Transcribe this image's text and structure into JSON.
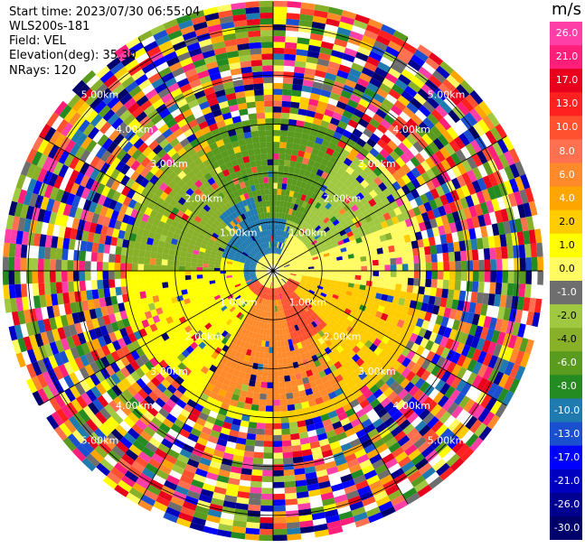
{
  "header": {
    "start_time": "Start time: 2023/07/30 06:55:04",
    "instrument": "WLS200s-181",
    "field": "Field: VEL",
    "elevation": "Elevation(deg): 35.30",
    "nrays": "NRays: 120"
  },
  "colorbar": {
    "unit": "m/s",
    "levels": [
      "26.0",
      "21.0",
      "17.0",
      "13.0",
      "10.0",
      "8.0",
      "6.0",
      "4.0",
      "2.0",
      "1.0",
      "0.0",
      "-1.0",
      "-2.0",
      "-4.0",
      "-6.0",
      "-8.0",
      "-10.0",
      "-13.0",
      "-17.0",
      "-21.0",
      "-26.0",
      "-30.0"
    ],
    "colors": [
      "#ff3fa8",
      "#ff1f7a",
      "#e8001c",
      "#ff2020",
      "#ff5030",
      "#ff7050",
      "#ff8a2a",
      "#ffa500",
      "#ffcc00",
      "#ffff00",
      "#fffb60",
      "#6e6e6e",
      "#a0c840",
      "#88b028",
      "#5a9a1e",
      "#238b22",
      "#1f7ab0",
      "#1a4fd0",
      "#0000ff",
      "#0000c0",
      "#000090",
      "#00006a"
    ]
  },
  "chart_data": {
    "type": "heatmap",
    "projection": "polar (PPI)",
    "range_ring_labels": [
      "1.00km",
      "2.00km",
      "3.00km",
      "4.00km",
      "5.00km"
    ],
    "range_rings_km": [
      1,
      2,
      3,
      4,
      5
    ],
    "max_range_km": 5.5,
    "valid_data_range_km": 3.0,
    "azimuth_spokes_deg": [
      0,
      30,
      60,
      90,
      120,
      150,
      180,
      210,
      240,
      270,
      300,
      330
    ],
    "nrays": 120,
    "velocity_pattern": [
      {
        "azimuth_deg": 330,
        "range_km": [
          0.3,
          1.2
        ],
        "value": -10.0
      },
      {
        "azimuth_deg": 0,
        "range_km": [
          1.0,
          2.8
        ],
        "value": -6.0
      },
      {
        "azimuth_deg": 300,
        "range_km": [
          1.0,
          2.8
        ],
        "value": -4.0
      },
      {
        "azimuth_deg": 60,
        "range_km": [
          0.8,
          2.6
        ],
        "value": -2.0
      },
      {
        "azimuth_deg": 75,
        "range_km": [
          0.2,
          3.0
        ],
        "value": 0.0
      },
      {
        "azimuth_deg": 150,
        "range_km": [
          0.3,
          1.2
        ],
        "value": 10.0
      },
      {
        "azimuth_deg": 180,
        "range_km": [
          0.5,
          2.5
        ],
        "value": 6.0
      },
      {
        "azimuth_deg": 120,
        "range_km": [
          0.5,
          3.0
        ],
        "value": 2.0
      },
      {
        "azimuth_deg": 240,
        "range_km": [
          0.5,
          2.8
        ],
        "value": 1.0
      }
    ]
  }
}
